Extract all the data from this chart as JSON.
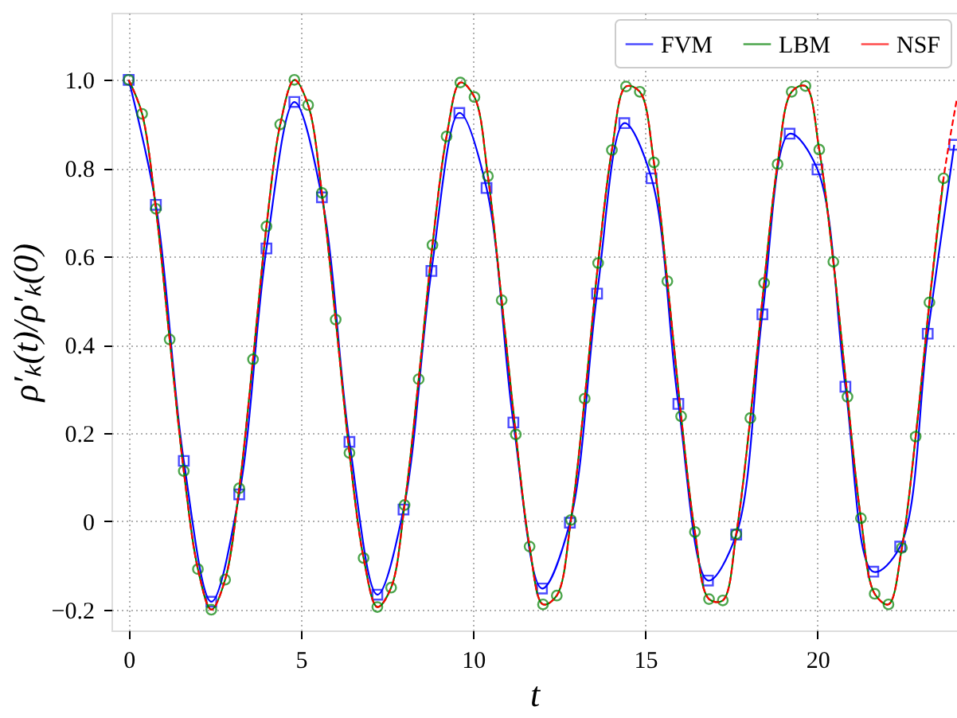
{
  "chart_data": {
    "type": "line",
    "xlabel": "t",
    "ylabel": "ρ′ₖ(t)/ρ′ₖ(0)",
    "xlim": [
      -0.5,
      24.05
    ],
    "ylim": [
      -0.247,
      1.152
    ],
    "xticks": [
      0,
      5,
      10,
      15,
      20
    ],
    "yticks": [
      {
        "value": -0.2,
        "label": "−0.2"
      },
      0,
      0.2,
      0.4,
      0.6,
      0.8,
      {
        "value": 1.0,
        "label": "1.0"
      }
    ],
    "grid": true,
    "legend": "top right",
    "series": [
      {
        "name": "FVM",
        "color": "#0000ff",
        "marker": "square",
        "line_style": "solid",
        "x": [
          0,
          0.79,
          1.6,
          2.4,
          3.21,
          4.0,
          4.81,
          5.61,
          6.41,
          7.22,
          7.98,
          8.79,
          9.6,
          10.39,
          11.17,
          12.0,
          12.81,
          13.6,
          14.39,
          15.18,
          15.96,
          16.82,
          17.64,
          18.4,
          19.19,
          20.0,
          20.81,
          21.62,
          22.4,
          23.2,
          23.97
        ],
        "values": [
          1.0,
          0.717,
          0.137,
          -0.182,
          0.061,
          0.618,
          0.95,
          0.734,
          0.18,
          -0.166,
          0.027,
          0.567,
          0.925,
          0.755,
          0.224,
          -0.152,
          -0.003,
          0.516,
          0.902,
          0.777,
          0.266,
          -0.134,
          -0.03,
          0.469,
          0.878,
          0.797,
          0.305,
          -0.114,
          -0.057,
          0.425,
          0.853
        ]
      },
      {
        "name": "LBM",
        "color": "#008000",
        "marker": "circle",
        "line_style": "solid",
        "x": [
          0,
          0.39,
          0.79,
          1.19,
          1.6,
          2.01,
          2.4,
          2.8,
          3.21,
          3.61,
          4.0,
          4.4,
          4.81,
          5.21,
          5.61,
          6.01,
          6.41,
          6.82,
          7.22,
          7.62,
          8.01,
          8.42,
          8.82,
          9.23,
          9.63,
          10.04,
          10.43,
          10.83,
          11.24,
          11.64,
          12.03,
          12.43,
          12.84,
          13.24,
          13.63,
          14.03,
          14.44,
          14.84,
          15.25,
          15.64,
          16.04,
          16.44,
          16.85,
          17.25,
          17.64,
          18.05,
          18.45,
          18.84,
          19.25,
          19.65,
          20.05,
          20.46,
          20.87,
          21.26,
          21.66,
          22.06,
          22.45,
          22.85,
          23.25,
          23.66
        ],
        "values": [
          1.0,
          0.923,
          0.708,
          0.412,
          0.114,
          -0.108,
          -0.2,
          -0.132,
          0.075,
          0.367,
          0.668,
          0.899,
          1.0,
          0.943,
          0.744,
          0.457,
          0.155,
          -0.083,
          -0.194,
          -0.15,
          0.037,
          0.322,
          0.626,
          0.872,
          0.994,
          0.961,
          0.782,
          0.501,
          0.197,
          -0.057,
          -0.188,
          -0.168,
          0.003,
          0.278,
          0.585,
          0.841,
          0.985,
          0.973,
          0.813,
          0.544,
          0.238,
          -0.024,
          -0.176,
          -0.179,
          -0.029,
          0.234,
          0.54,
          0.809,
          0.973,
          0.986,
          0.842,
          0.588,
          0.282,
          0.007,
          -0.164,
          -0.188,
          -0.06,
          0.192,
          0.496,
          0.777
        ]
      },
      {
        "name": "NSF",
        "color": "#ff0000",
        "marker": "none",
        "line_style": "dashed",
        "x": [
          0,
          0.39,
          0.79,
          1.19,
          1.6,
          2.01,
          2.4,
          2.8,
          3.21,
          3.61,
          4.0,
          4.4,
          4.81,
          5.21,
          5.61,
          6.01,
          6.41,
          6.82,
          7.22,
          7.62,
          8.01,
          8.42,
          8.82,
          9.23,
          9.63,
          10.04,
          10.43,
          10.83,
          11.24,
          11.64,
          12.03,
          12.43,
          12.84,
          13.24,
          13.63,
          14.03,
          14.44,
          14.84,
          15.25,
          15.64,
          16.04,
          16.44,
          16.85,
          17.25,
          17.64,
          18.05,
          18.45,
          18.84,
          19.25,
          19.65,
          20.05,
          20.46,
          20.87,
          21.26,
          21.66,
          22.06,
          22.45,
          22.85,
          23.25,
          23.66,
          24.05
        ],
        "values": [
          1.0,
          0.923,
          0.708,
          0.412,
          0.114,
          -0.108,
          -0.2,
          -0.132,
          0.075,
          0.367,
          0.668,
          0.899,
          1.0,
          0.943,
          0.744,
          0.457,
          0.155,
          -0.083,
          -0.194,
          -0.15,
          0.037,
          0.322,
          0.626,
          0.872,
          0.994,
          0.961,
          0.782,
          0.501,
          0.197,
          -0.057,
          -0.188,
          -0.168,
          0.003,
          0.278,
          0.585,
          0.841,
          0.985,
          0.973,
          0.813,
          0.544,
          0.238,
          -0.024,
          -0.176,
          -0.179,
          -0.029,
          0.234,
          0.54,
          0.809,
          0.973,
          0.986,
          0.842,
          0.588,
          0.282,
          0.007,
          -0.164,
          -0.188,
          -0.06,
          0.192,
          0.496,
          0.777,
          0.958
        ]
      }
    ]
  }
}
